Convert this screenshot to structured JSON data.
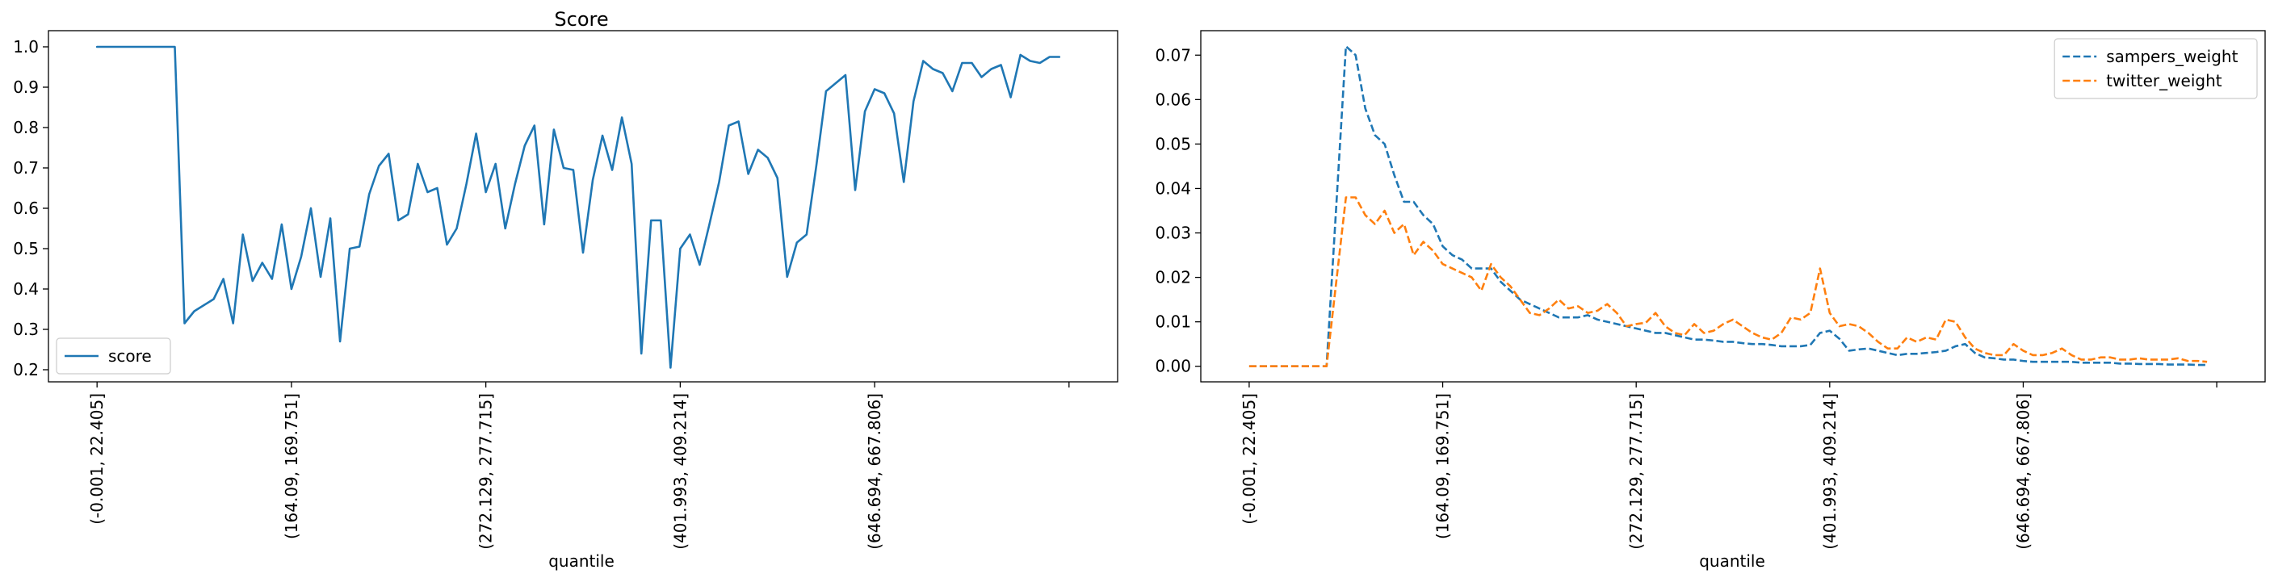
{
  "chart_data": [
    {
      "type": "line",
      "title": "Score",
      "xlabel": "quantile",
      "ylabel": "",
      "x_tick_labels": [
        "(-0.001, 22.405]",
        "(164.09, 169.751]",
        "(272.129, 277.715]",
        "(401.993, 409.214]",
        "(646.694, 667.806]",
        ""
      ],
      "x_tick_positions": [
        0,
        20,
        40,
        60,
        80,
        100
      ],
      "xlim": [
        -5,
        105
      ],
      "ylim": [
        0.17,
        1.04
      ],
      "yticks": [
        0.2,
        0.3,
        0.4,
        0.5,
        0.6,
        0.7,
        0.8,
        0.9,
        1.0
      ],
      "ytick_labels": [
        "0.2",
        "0.3",
        "0.4",
        "0.5",
        "0.6",
        "0.7",
        "0.8",
        "0.9",
        "1.0"
      ],
      "legend_position": "lower-left",
      "series": [
        {
          "name": "score",
          "color": "#1f77b4",
          "dash": "solid",
          "values": [
            1.0,
            1.0,
            1.0,
            1.0,
            1.0,
            1.0,
            1.0,
            1.0,
            1.0,
            0.315,
            0.345,
            0.36,
            0.375,
            0.425,
            0.315,
            0.535,
            0.42,
            0.465,
            0.425,
            0.56,
            0.4,
            0.48,
            0.6,
            0.43,
            0.575,
            0.27,
            0.5,
            0.505,
            0.635,
            0.705,
            0.735,
            0.57,
            0.585,
            0.71,
            0.64,
            0.65,
            0.51,
            0.55,
            0.66,
            0.785,
            0.64,
            0.71,
            0.55,
            0.66,
            0.755,
            0.805,
            0.56,
            0.795,
            0.7,
            0.695,
            0.49,
            0.67,
            0.78,
            0.695,
            0.825,
            0.71,
            0.24,
            0.57,
            0.57,
            0.205,
            0.5,
            0.535,
            0.46,
            0.56,
            0.665,
            0.805,
            0.815,
            0.685,
            0.745,
            0.725,
            0.675,
            0.43,
            0.515,
            0.535,
            0.705,
            0.89,
            0.91,
            0.93,
            0.645,
            0.84,
            0.895,
            0.885,
            0.835,
            0.665,
            0.865,
            0.965,
            0.945,
            0.935,
            0.89,
            0.96,
            0.96,
            0.925,
            0.945,
            0.955,
            0.875,
            0.98,
            0.965,
            0.96,
            0.975,
            0.975
          ]
        }
      ]
    },
    {
      "type": "line",
      "title": "",
      "xlabel": "quantile",
      "ylabel": "",
      "x_tick_labels": [
        "(-0.001, 22.405]",
        "(164.09, 169.751]",
        "(272.129, 277.715]",
        "(401.993, 409.214]",
        "(646.694, 667.806]",
        ""
      ],
      "x_tick_positions": [
        0,
        20,
        40,
        60,
        80,
        100
      ],
      "xlim": [
        -5,
        105
      ],
      "ylim": [
        -0.0035,
        0.0755
      ],
      "yticks": [
        0.0,
        0.01,
        0.02,
        0.03,
        0.04,
        0.05,
        0.06,
        0.07
      ],
      "ytick_labels": [
        "0.00",
        "0.01",
        "0.02",
        "0.03",
        "0.04",
        "0.05",
        "0.06",
        "0.07"
      ],
      "legend_position": "upper-right",
      "series": [
        {
          "name": "sampers_weight",
          "color": "#1f77b4",
          "dash": "dashed",
          "values": [
            0.0,
            0.0,
            0.0,
            0.0,
            0.0,
            0.0,
            0.0,
            0.0,
            0.0,
            0.036,
            0.072,
            0.07,
            0.058,
            0.052,
            0.05,
            0.043,
            0.037,
            0.037,
            0.034,
            0.032,
            0.027,
            0.025,
            0.024,
            0.022,
            0.022,
            0.022,
            0.019,
            0.017,
            0.015,
            0.014,
            0.013,
            0.012,
            0.011,
            0.011,
            0.011,
            0.0115,
            0.0105,
            0.01,
            0.0095,
            0.009,
            0.0085,
            0.008,
            0.0075,
            0.0075,
            0.007,
            0.0065,
            0.006,
            0.006,
            0.0058,
            0.0055,
            0.0055,
            0.0052,
            0.005,
            0.005,
            0.0048,
            0.0045,
            0.0045,
            0.0045,
            0.0048,
            0.0075,
            0.008,
            0.0062,
            0.0035,
            0.0038,
            0.004,
            0.0035,
            0.003,
            0.0025,
            0.0028,
            0.0028,
            0.003,
            0.0032,
            0.0035,
            0.0045,
            0.005,
            0.003,
            0.002,
            0.0018,
            0.0015,
            0.0015,
            0.0012,
            0.001,
            0.001,
            0.001,
            0.001,
            0.001,
            0.0008,
            0.0008,
            0.0008,
            0.0008,
            0.0006,
            0.0006,
            0.0005,
            0.0005,
            0.0005,
            0.0004,
            0.0004,
            0.0004,
            0.0003,
            0.0003
          ]
        },
        {
          "name": "twitter_weight",
          "color": "#ff7f0e",
          "dash": "dashed",
          "values": [
            0.0,
            0.0,
            0.0,
            0.0,
            0.0,
            0.0,
            0.0,
            0.0,
            0.0,
            0.019,
            0.038,
            0.038,
            0.034,
            0.032,
            0.035,
            0.03,
            0.032,
            0.025,
            0.028,
            0.026,
            0.023,
            0.022,
            0.021,
            0.02,
            0.017,
            0.023,
            0.02,
            0.018,
            0.015,
            0.012,
            0.0115,
            0.013,
            0.015,
            0.013,
            0.0135,
            0.012,
            0.0125,
            0.014,
            0.012,
            0.009,
            0.0095,
            0.0098,
            0.012,
            0.009,
            0.0075,
            0.007,
            0.0095,
            0.0075,
            0.008,
            0.0095,
            0.0105,
            0.009,
            0.0075,
            0.0065,
            0.006,
            0.0075,
            0.011,
            0.0105,
            0.012,
            0.022,
            0.012,
            0.009,
            0.0095,
            0.009,
            0.0075,
            0.0055,
            0.004,
            0.004,
            0.0065,
            0.0055,
            0.0065,
            0.006,
            0.0105,
            0.01,
            0.0065,
            0.004,
            0.003,
            0.0025,
            0.0025,
            0.005,
            0.0035,
            0.0025,
            0.0025,
            0.003,
            0.004,
            0.0025,
            0.0015,
            0.0015,
            0.002,
            0.002,
            0.0015,
            0.0015,
            0.0018,
            0.0015,
            0.0015,
            0.0015,
            0.0018,
            0.0012,
            0.0012,
            0.001
          ]
        }
      ]
    }
  ]
}
